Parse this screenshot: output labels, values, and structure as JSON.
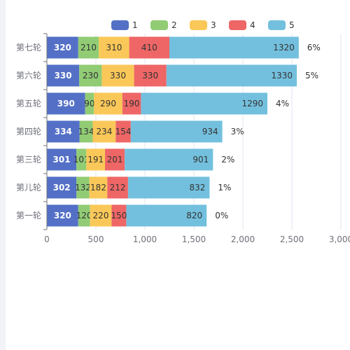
{
  "chart_data": {
    "type": "bar",
    "orientation": "horizontal",
    "stacked": true,
    "categories": [
      "第一轮",
      "第儿轮",
      "第三轮",
      "第四轮",
      "第五轮",
      "第六轮",
      "第七轮"
    ],
    "series": [
      {
        "name": "1",
        "color": "#5470c6",
        "values": [
          320,
          302,
          301,
          334,
          390,
          330,
          320
        ]
      },
      {
        "name": "2",
        "color": "#91cc75",
        "values": [
          120,
          132,
          101,
          134,
          90,
          230,
          210
        ]
      },
      {
        "name": "3",
        "color": "#fac858",
        "values": [
          220,
          182,
          191,
          234,
          290,
          330,
          310
        ]
      },
      {
        "name": "4",
        "color": "#ee6666",
        "values": [
          150,
          212,
          201,
          154,
          190,
          330,
          410
        ]
      },
      {
        "name": "5",
        "color": "#73c0de",
        "values": [
          820,
          832,
          901,
          934,
          1290,
          1330,
          1320
        ]
      }
    ],
    "end_labels": [
      "0%",
      "1%",
      "2%",
      "3%",
      "4%",
      "5%",
      "6%"
    ],
    "xlim": [
      0,
      3000
    ],
    "x_ticks": [
      "0",
      "500",
      "1,000",
      "1,500",
      "2,000",
      "2,500",
      "3,000"
    ],
    "legend_position": "top-center",
    "grid": "vertical",
    "title": "",
    "xlabel": "",
    "ylabel": ""
  }
}
